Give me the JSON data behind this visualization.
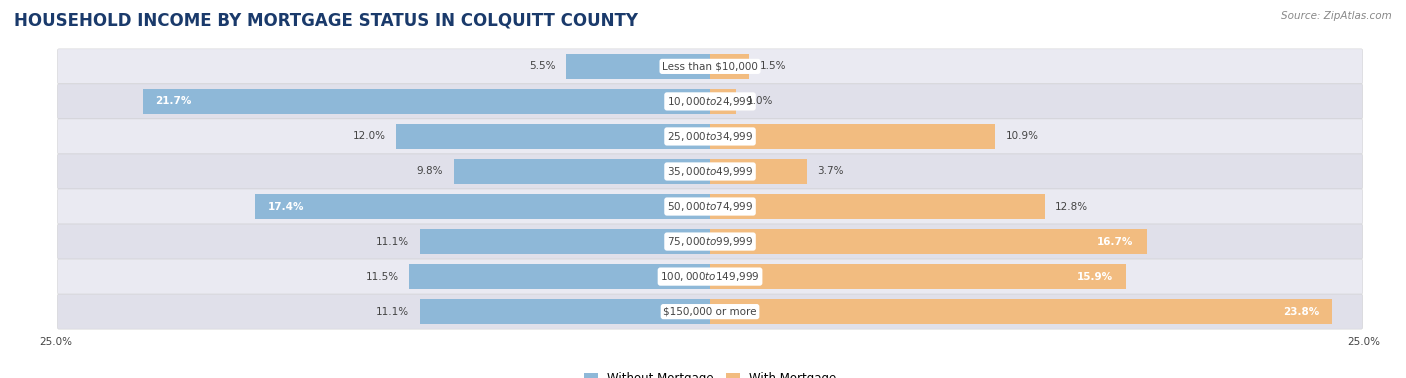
{
  "title": "HOUSEHOLD INCOME BY MORTGAGE STATUS IN COLQUITT COUNTY",
  "source": "Source: ZipAtlas.com",
  "categories": [
    "Less than $10,000",
    "$10,000 to $24,999",
    "$25,000 to $34,999",
    "$35,000 to $49,999",
    "$50,000 to $74,999",
    "$75,000 to $99,999",
    "$100,000 to $149,999",
    "$150,000 or more"
  ],
  "without_mortgage": [
    5.5,
    21.7,
    12.0,
    9.8,
    17.4,
    11.1,
    11.5,
    11.1
  ],
  "with_mortgage": [
    1.5,
    1.0,
    10.9,
    3.7,
    12.8,
    16.7,
    15.9,
    23.8
  ],
  "color_without": "#8eb8d8",
  "color_with": "#f2bc80",
  "row_colors": [
    "#eaeaf2",
    "#e0e0ea"
  ],
  "xlim": 25.0,
  "title_fontsize": 12,
  "label_fontsize": 7.5,
  "value_fontsize": 7.5,
  "source_fontsize": 7.5,
  "legend_fontsize": 8.5,
  "title_color": "#1a3a6b",
  "text_dark": "#444444",
  "text_white": "#ffffff"
}
